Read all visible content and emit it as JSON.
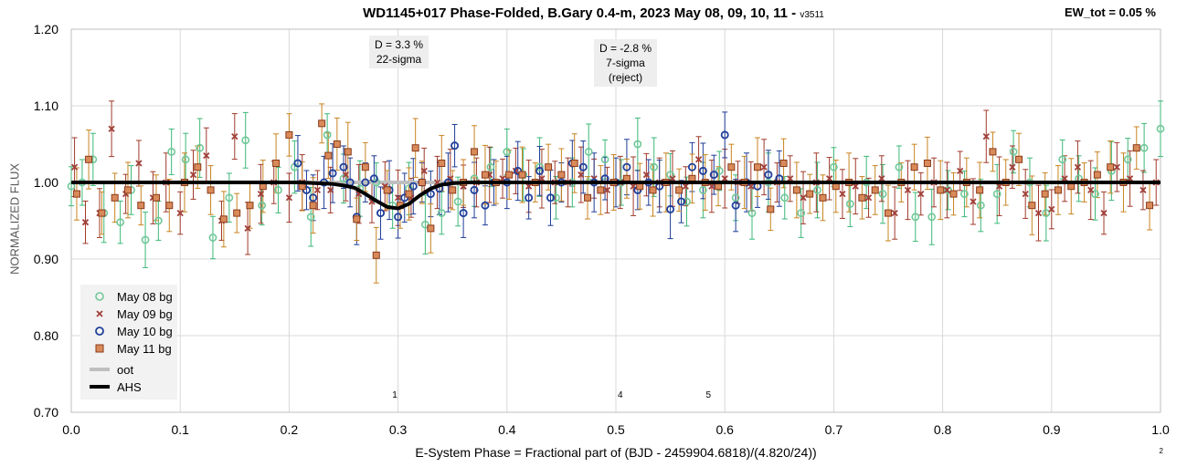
{
  "header": {
    "title": "WD1145+017 Phase-Folded, B.Gary 0.4-m, 2023 May 08, 09, 10, 11 -",
    "version": "v3511",
    "ew_label": "EW_tot = 0.05 %"
  },
  "annotations": {
    "dip1_line1": "D = 3.3 %",
    "dip1_line2": "22-sigma",
    "dip2_line1": "D = -2.8 %",
    "dip2_line2": "7-sigma",
    "dip2_line3": "(reject)"
  },
  "markers": [
    "1",
    "4",
    "5"
  ],
  "corner_note": "2",
  "colors": {
    "may08": "#70c898",
    "may09": "#a0403a",
    "may10": "#1f3f9a",
    "may11": "#d98a5a",
    "may11_edge": "#8a3a1a",
    "err_may08": "#3cb878",
    "err_may09": "#a03a2a",
    "err_may10": "#1e3c96",
    "err_may11": "#c88420",
    "oot": "#bfbfbf",
    "ahs": "#000000",
    "grid": "#d9d9d9",
    "axis": "#bfbfbf"
  },
  "chart_data": {
    "type": "scatter",
    "xlabel": "E-System Phase = Fractional part of (BJD - 2459904.6818)/(4.820/24))",
    "ylabel": "NORMALIZED FLUX",
    "xlim": [
      0.0,
      1.0
    ],
    "ylim": [
      0.7,
      1.2
    ],
    "x_ticks": [
      0.0,
      0.1,
      0.2,
      0.3,
      0.4,
      0.5,
      0.6,
      0.7,
      0.8,
      0.9,
      1.0
    ],
    "x_tick_labels": [
      "0.0",
      "0.1",
      "0.2",
      "0.3",
      "0.4",
      "0.5",
      "0.6",
      "0.7",
      "0.8",
      "0.9",
      "1.0"
    ],
    "y_ticks": [
      0.7,
      0.8,
      0.9,
      1.0,
      1.1,
      1.2
    ],
    "y_tick_labels": [
      "0.70",
      "0.80",
      "0.90",
      "1.00",
      "1.10",
      "1.20"
    ],
    "grid": true,
    "legend_placement": "bottom-left",
    "series": [
      {
        "name": "May 08 bg",
        "marker": "open-circle",
        "x": [
          0.0,
          0.01,
          0.02,
          0.03,
          0.045,
          0.055,
          0.068,
          0.08,
          0.092,
          0.105,
          0.118,
          0.13,
          0.145,
          0.16,
          0.175,
          0.19,
          0.205,
          0.22,
          0.235,
          0.25,
          0.265,
          0.28,
          0.295,
          0.31,
          0.325,
          0.34,
          0.355,
          0.37,
          0.385,
          0.4,
          0.415,
          0.43,
          0.445,
          0.46,
          0.475,
          0.49,
          0.505,
          0.52,
          0.535,
          0.55,
          0.565,
          0.58,
          0.595,
          0.61,
          0.625,
          0.64,
          0.655,
          0.67,
          0.685,
          0.7,
          0.715,
          0.73,
          0.745,
          0.76,
          0.775,
          0.79,
          0.805,
          0.82,
          0.835,
          0.85,
          0.865,
          0.88,
          0.895,
          0.91,
          0.925,
          0.94,
          0.955,
          0.97,
          0.985,
          1.0
        ],
        "y": [
          0.995,
          1.0,
          1.03,
          0.96,
          0.948,
          0.99,
          0.925,
          0.95,
          1.04,
          1.03,
          1.045,
          0.928,
          0.98,
          1.055,
          0.97,
          0.99,
          1.02,
          0.955,
          1.062,
          1.005,
          0.992,
          1.0,
          0.97,
          0.992,
          0.945,
          0.96,
          0.975,
          1.005,
          1.02,
          1.04,
          1.01,
          1.02,
          0.98,
          1.0,
          1.04,
          1.03,
          1.0,
          1.05,
          1.02,
          1.01,
          0.975,
          0.99,
          1.015,
          0.98,
          0.96,
          1.0,
          0.98,
          0.96,
          0.99,
          1.02,
          0.972,
          1.0,
          0.985,
          1.02,
          0.955,
          0.955,
          0.99,
          0.985,
          0.97,
          0.985,
          1.04,
          1.0,
          0.96,
          1.03,
          1.005,
          0.985,
          1.015,
          1.03,
          1.045,
          1.07
        ]
      },
      {
        "name": "May 09 bg",
        "marker": "x",
        "x": [
          0.003,
          0.013,
          0.026,
          0.037,
          0.05,
          0.062,
          0.075,
          0.087,
          0.1,
          0.112,
          0.124,
          0.138,
          0.15,
          0.162,
          0.174,
          0.186,
          0.2,
          0.212,
          0.226,
          0.238,
          0.252,
          0.264,
          0.276,
          0.288,
          0.3,
          0.312,
          0.324,
          0.336,
          0.348,
          0.36,
          0.372,
          0.384,
          0.396,
          0.408,
          0.42,
          0.432,
          0.444,
          0.456,
          0.468,
          0.48,
          0.492,
          0.504,
          0.516,
          0.528,
          0.54,
          0.552,
          0.564,
          0.576,
          0.588,
          0.6,
          0.612,
          0.624,
          0.636,
          0.648,
          0.66,
          0.672,
          0.684,
          0.696,
          0.708,
          0.72,
          0.732,
          0.744,
          0.756,
          0.768,
          0.78,
          0.792,
          0.804,
          0.816,
          0.828,
          0.84,
          0.852,
          0.864,
          0.876,
          0.888,
          0.9,
          0.912,
          0.924,
          0.936,
          0.948,
          0.96,
          0.972,
          0.984,
          0.996
        ],
        "y": [
          1.02,
          0.948,
          0.96,
          1.07,
          0.985,
          1.025,
          0.98,
          1.0,
          0.96,
          1.01,
          1.035,
          0.95,
          1.06,
          0.94,
          0.985,
          1.0,
          0.98,
          1.0,
          0.99,
          0.99,
          1.01,
          0.985,
          0.975,
          0.995,
          0.98,
          0.98,
          1.015,
          1.0,
          1.005,
          0.995,
          1.0,
          1.01,
          1.005,
          1.015,
          0.995,
          1.005,
          1.0,
          1.0,
          1.01,
          1.005,
          0.99,
          1.0,
          0.995,
          1.01,
          1.0,
          1.005,
          0.995,
          1.03,
          0.995,
          1.005,
          1.0,
          0.995,
          1.02,
          1.0,
          1.005,
          0.98,
          1.0,
          1.005,
          0.985,
          0.995,
          0.98,
          1.005,
          0.96,
          0.99,
          0.985,
          1.0,
          0.99,
          1.015,
          0.975,
          1.06,
          0.995,
          1.02,
          0.985,
          0.96,
          0.965,
          1.005,
          1.02,
          0.99,
          0.96,
          1.02,
          1.005,
          0.99,
          1.0
        ]
      },
      {
        "name": "May 10 bg",
        "marker": "open-circle-dark",
        "x": [
          0.208,
          0.216,
          0.222,
          0.232,
          0.24,
          0.25,
          0.256,
          0.262,
          0.27,
          0.278,
          0.284,
          0.292,
          0.3,
          0.306,
          0.314,
          0.322,
          0.33,
          0.338,
          0.346,
          0.352,
          0.36,
          0.37,
          0.38,
          0.388,
          0.4,
          0.41,
          0.42,
          0.43,
          0.44,
          0.45,
          0.46,
          0.47,
          0.48,
          0.49,
          0.5,
          0.51,
          0.52,
          0.53,
          0.54,
          0.55,
          0.56,
          0.57,
          0.58,
          0.59,
          0.6,
          0.61,
          0.62,
          0.63,
          0.64,
          0.65
        ],
        "y": [
          1.025,
          0.99,
          0.98,
          1.0,
          1.012,
          1.02,
          1.0,
          0.955,
          1.0,
          1.005,
          0.96,
          0.99,
          0.955,
          0.98,
          0.995,
          1.0,
          0.985,
          0.992,
          1.0,
          1.048,
          0.96,
          0.99,
          0.97,
          1.0,
          1.0,
          1.015,
          0.98,
          1.015,
          0.98,
          1.0,
          1.025,
          1.02,
          1.0,
          1.005,
          1.0,
          1.02,
          0.99,
          1.0,
          0.995,
          0.965,
          0.975,
          1.02,
          1.015,
          1.01,
          1.062,
          0.97,
          1.0,
          0.995,
          1.01,
          1.005
        ]
      },
      {
        "name": "May 11 bg",
        "marker": "filled-square",
        "x": [
          0.005,
          0.016,
          0.028,
          0.04,
          0.052,
          0.064,
          0.078,
          0.09,
          0.104,
          0.116,
          0.128,
          0.14,
          0.152,
          0.164,
          0.176,
          0.188,
          0.2,
          0.212,
          0.222,
          0.23,
          0.236,
          0.244,
          0.254,
          0.262,
          0.27,
          0.28,
          0.29,
          0.302,
          0.31,
          0.316,
          0.322,
          0.33,
          0.34,
          0.35,
          0.36,
          0.37,
          0.38,
          0.39,
          0.402,
          0.414,
          0.426,
          0.438,
          0.45,
          0.462,
          0.474,
          0.486,
          0.498,
          0.51,
          0.522,
          0.534,
          0.546,
          0.558,
          0.57,
          0.582,
          0.594,
          0.606,
          0.618,
          0.63,
          0.642,
          0.654,
          0.666,
          0.678,
          0.69,
          0.702,
          0.714,
          0.726,
          0.738,
          0.75,
          0.762,
          0.774,
          0.786,
          0.798,
          0.81,
          0.822,
          0.834,
          0.846,
          0.858,
          0.87,
          0.882,
          0.894,
          0.906,
          0.918,
          0.93,
          0.942,
          0.954,
          0.966,
          0.978,
          0.99
        ],
        "y": [
          0.985,
          1.03,
          0.96,
          0.98,
          0.99,
          0.97,
          0.98,
          0.97,
          1.0,
          1.02,
          0.99,
          0.952,
          0.96,
          0.97,
          0.995,
          1.025,
          1.062,
          0.995,
          0.97,
          1.077,
          1.035,
          1.05,
          1.04,
          0.952,
          1.02,
          0.905,
          0.99,
          0.97,
          0.985,
          1.045,
          1.0,
          0.94,
          1.025,
          0.99,
          1.0,
          1.04,
          1.01,
          1.0,
          1.01,
          1.01,
          1.0,
          1.02,
          1.01,
          1.025,
          0.98,
          0.99,
          1.0,
          1.005,
          0.995,
          0.99,
          1.0,
          0.99,
          1.005,
          1.0,
          0.995,
          1.02,
          1.0,
          1.02,
          0.965,
          1.025,
          0.99,
          0.985,
          0.98,
          0.995,
          1.0,
          0.98,
          0.99,
          0.96,
          1.0,
          1.02,
          1.025,
          0.99,
          0.985,
          1.0,
          0.99,
          1.04,
          1.0,
          1.03,
          0.97,
          0.985,
          0.99,
          0.995,
          1.0,
          1.01,
          1.02,
          1.0,
          1.045,
          0.97
        ]
      },
      {
        "name": "oot",
        "type": "line",
        "x": [
          0.0,
          1.0
        ],
        "y": [
          1.0,
          1.0
        ]
      },
      {
        "name": "AHS",
        "type": "line",
        "x": [
          0.0,
          0.21,
          0.225,
          0.24,
          0.25,
          0.26,
          0.27,
          0.28,
          0.29,
          0.3,
          0.31,
          0.32,
          0.33,
          0.34,
          0.35,
          0.365,
          1.0
        ],
        "y": [
          1.0,
          1.0,
          0.999,
          0.998,
          0.996,
          0.993,
          0.985,
          0.976,
          0.968,
          0.966,
          0.972,
          0.983,
          0.992,
          0.997,
          0.999,
          1.0,
          1.0
        ]
      }
    ],
    "error_bar_typical": 0.03
  }
}
